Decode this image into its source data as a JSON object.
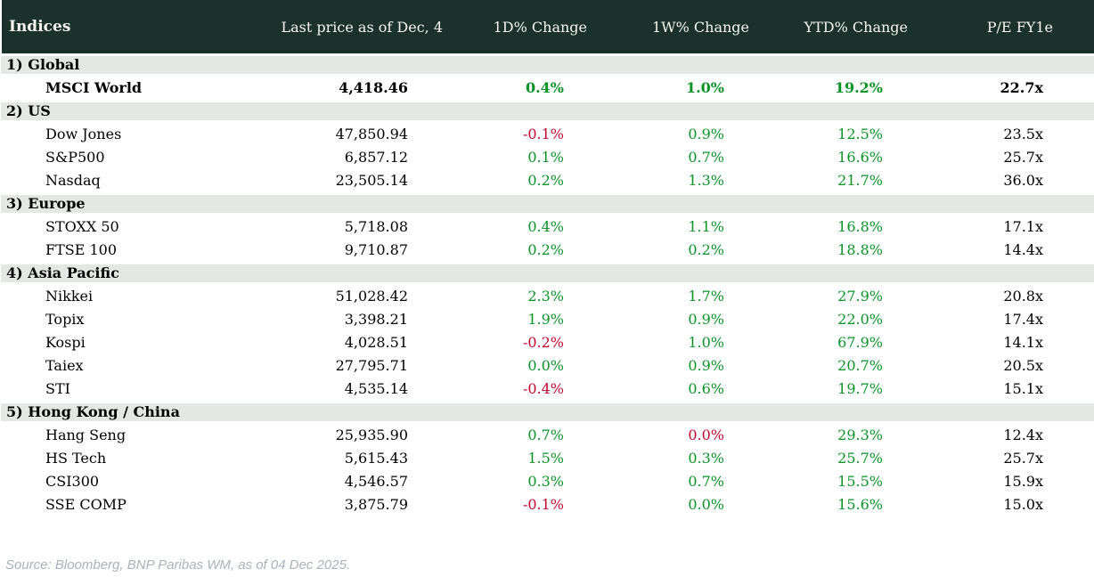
{
  "table": {
    "title": "Indices",
    "columns": [
      "Last price as of Dec, 4",
      "1D% Change",
      "1W% Change",
      "YTD% Change",
      "P/E FY1e"
    ],
    "sections": [
      {
        "label": "1) Global",
        "rows": [
          {
            "name": "MSCI World",
            "price": "4,418.46",
            "changes": [
              {
                "v": "0.4%",
                "c": "pos"
              },
              {
                "v": "1.0%",
                "c": "pos"
              },
              {
                "v": "19.2%",
                "c": "pos"
              }
            ],
            "pe": "22.7x",
            "bold": true
          }
        ]
      },
      {
        "label": "2) US",
        "rows": [
          {
            "name": "Dow Jones",
            "price": "47,850.94",
            "changes": [
              {
                "v": "-0.1%",
                "c": "neg"
              },
              {
                "v": "0.9%",
                "c": "pos"
              },
              {
                "v": "12.5%",
                "c": "pos"
              }
            ],
            "pe": "23.5x",
            "bold": false
          },
          {
            "name": "S&P500",
            "price": "6,857.12",
            "changes": [
              {
                "v": "0.1%",
                "c": "pos"
              },
              {
                "v": "0.7%",
                "c": "pos"
              },
              {
                "v": "16.6%",
                "c": "pos"
              }
            ],
            "pe": "25.7x",
            "bold": false
          },
          {
            "name": "Nasdaq",
            "price": "23,505.14",
            "changes": [
              {
                "v": "0.2%",
                "c": "pos"
              },
              {
                "v": "1.3%",
                "c": "pos"
              },
              {
                "v": "21.7%",
                "c": "pos"
              }
            ],
            "pe": "36.0x",
            "bold": false
          }
        ]
      },
      {
        "label": "3) Europe",
        "rows": [
          {
            "name": "STOXX 50",
            "price": "5,718.08",
            "changes": [
              {
                "v": "0.4%",
                "c": "pos"
              },
              {
                "v": "1.1%",
                "c": "pos"
              },
              {
                "v": "16.8%",
                "c": "pos"
              }
            ],
            "pe": "17.1x",
            "bold": false
          },
          {
            "name": "FTSE 100",
            "price": "9,710.87",
            "changes": [
              {
                "v": "0.2%",
                "c": "pos"
              },
              {
                "v": "0.2%",
                "c": "pos"
              },
              {
                "v": "18.8%",
                "c": "pos"
              }
            ],
            "pe": "14.4x",
            "bold": false
          }
        ]
      },
      {
        "label": "4) Asia Pacific",
        "rows": [
          {
            "name": "Nikkei",
            "price": "51,028.42",
            "changes": [
              {
                "v": "2.3%",
                "c": "pos"
              },
              {
                "v": "1.7%",
                "c": "pos"
              },
              {
                "v": "27.9%",
                "c": "pos"
              }
            ],
            "pe": "20.8x",
            "bold": false
          },
          {
            "name": "Topix",
            "price": "3,398.21",
            "changes": [
              {
                "v": "1.9%",
                "c": "pos"
              },
              {
                "v": "0.9%",
                "c": "pos"
              },
              {
                "v": "22.0%",
                "c": "pos"
              }
            ],
            "pe": "17.4x",
            "bold": false
          },
          {
            "name": "Kospi",
            "price": "4,028.51",
            "changes": [
              {
                "v": "-0.2%",
                "c": "neg"
              },
              {
                "v": "1.0%",
                "c": "pos"
              },
              {
                "v": "67.9%",
                "c": "pos"
              }
            ],
            "pe": "14.1x",
            "bold": false
          },
          {
            "name": "Taiex",
            "price": "27,795.71",
            "changes": [
              {
                "v": "0.0%",
                "c": "pos"
              },
              {
                "v": "0.9%",
                "c": "pos"
              },
              {
                "v": "20.7%",
                "c": "pos"
              }
            ],
            "pe": "20.5x",
            "bold": false
          },
          {
            "name": "STI",
            "price": "4,535.14",
            "changes": [
              {
                "v": "-0.4%",
                "c": "neg"
              },
              {
                "v": "0.6%",
                "c": "pos"
              },
              {
                "v": "19.7%",
                "c": "pos"
              }
            ],
            "pe": "15.1x",
            "bold": false
          }
        ]
      },
      {
        "label": "5) Hong Kong / China",
        "rows": [
          {
            "name": "Hang Seng",
            "price": "25,935.90",
            "changes": [
              {
                "v": "0.7%",
                "c": "pos"
              },
              {
                "v": "0.0%",
                "c": "neg"
              },
              {
                "v": "29.3%",
                "c": "pos"
              }
            ],
            "pe": "12.4x",
            "bold": false
          },
          {
            "name": "HS Tech",
            "price": "5,615.43",
            "changes": [
              {
                "v": "1.5%",
                "c": "pos"
              },
              {
                "v": "0.3%",
                "c": "pos"
              },
              {
                "v": "25.7%",
                "c": "pos"
              }
            ],
            "pe": "25.7x",
            "bold": false
          },
          {
            "name": "CSI300",
            "price": "4,546.57",
            "changes": [
              {
                "v": "0.3%",
                "c": "pos"
              },
              {
                "v": "0.7%",
                "c": "pos"
              },
              {
                "v": "15.5%",
                "c": "pos"
              }
            ],
            "pe": "15.9x",
            "bold": false
          },
          {
            "name": "SSE COMP",
            "price": "3,875.79",
            "changes": [
              {
                "v": "-0.1%",
                "c": "neg"
              },
              {
                "v": "0.0%",
                "c": "pos"
              },
              {
                "v": "15.6%",
                "c": "pos"
              }
            ],
            "pe": "15.0x",
            "bold": false
          }
        ]
      }
    ]
  },
  "footer": {
    "source": "Source: Bloomberg, BNP Paribas WM, as of 04 Dec 2025."
  },
  "colors": {
    "header_bg": "#1b322c",
    "header_text": "#f6f4ee",
    "section_bg": "#e4e8e4",
    "positive": "#0a9327",
    "negative": "#c3062e",
    "source_text": "#a9b2ba"
  }
}
